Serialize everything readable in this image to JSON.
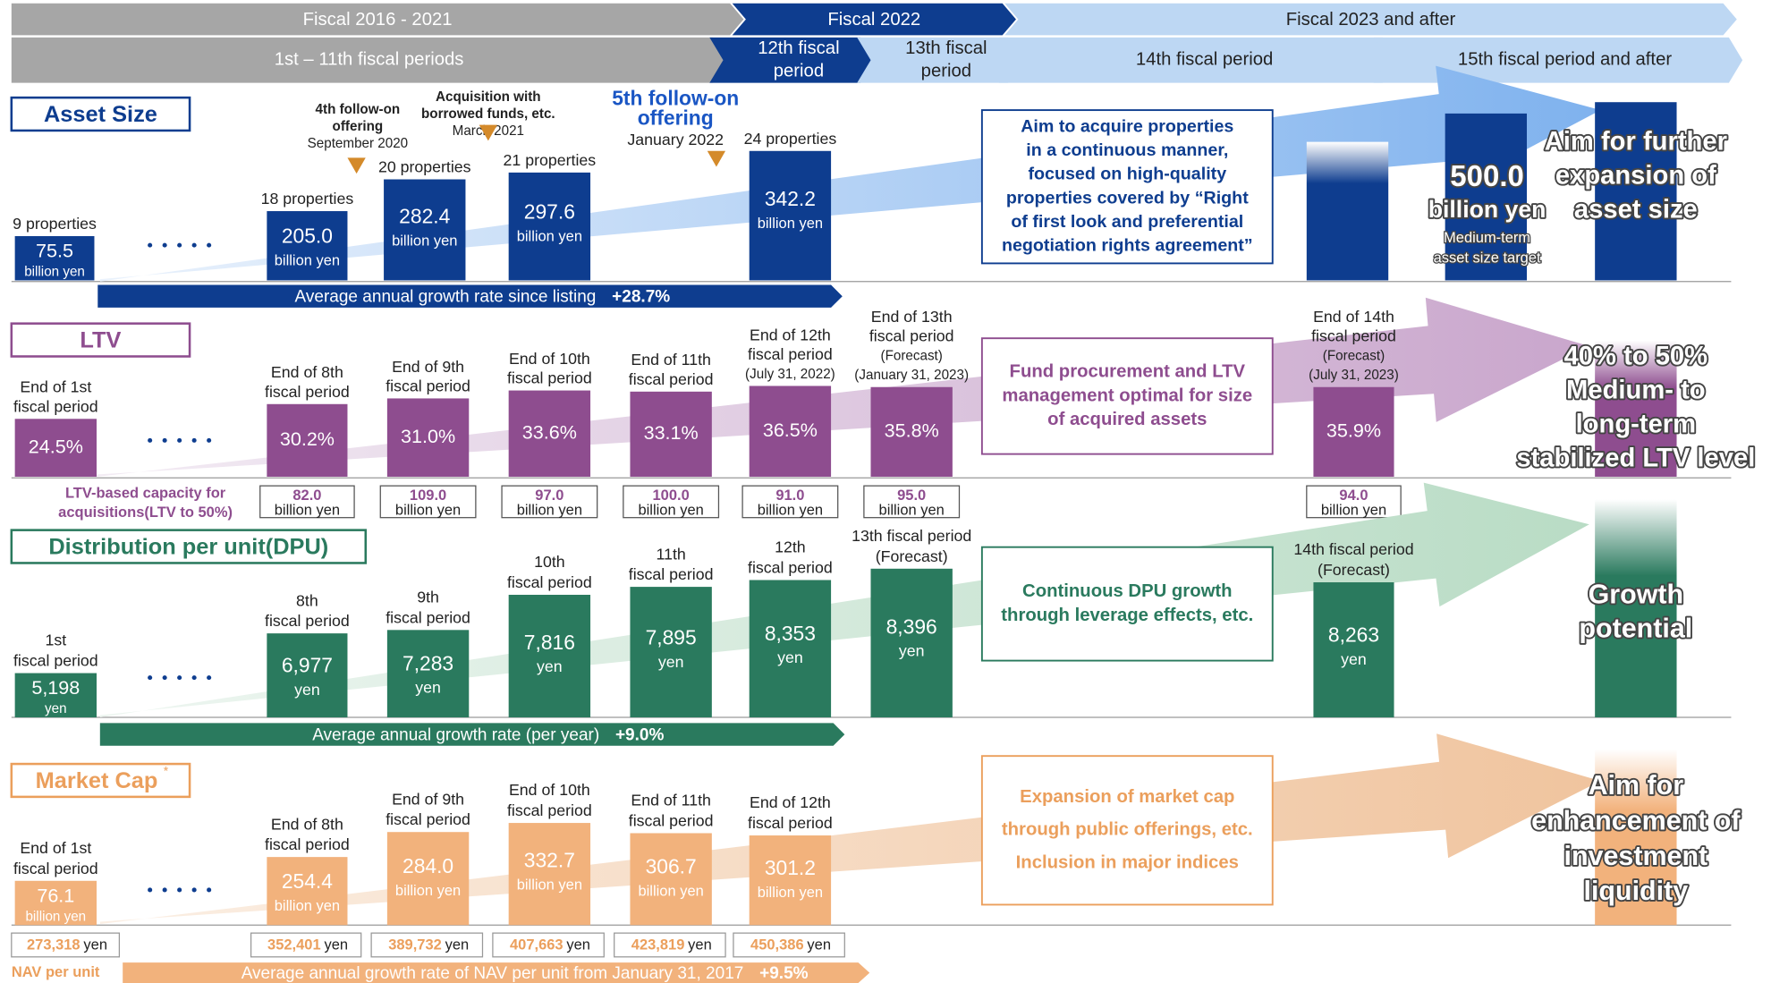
{
  "header": {
    "phases": [
      "Fiscal 2016 - 2021",
      "Fiscal 2022",
      "Fiscal 2023 and after"
    ],
    "periods": [
      [
        "1st – 11th fiscal periods"
      ],
      [
        "12th fiscal",
        "period"
      ],
      [
        "13th fiscal",
        "period"
      ],
      [
        "14th fiscal period"
      ],
      [
        "15th fiscal period and after"
      ]
    ]
  },
  "asset_size": {
    "title": "Asset Size",
    "bars": [
      {
        "label": [
          "9 properties"
        ],
        "value": "75.5",
        "unit": "billion yen"
      },
      {
        "label": [
          "18 properties"
        ],
        "value": "205.0",
        "unit": "billion yen"
      },
      {
        "label": [
          "20 properties"
        ],
        "value": "282.4",
        "unit": "billion yen"
      },
      {
        "label": [
          "21 properties"
        ],
        "value": "297.6",
        "unit": "billion yen"
      },
      {
        "label": [
          "24 properties"
        ],
        "value": "342.2",
        "unit": "billion yen"
      }
    ],
    "annotations": [
      {
        "lines": [
          "4th follow-on",
          "offering"
        ],
        "date": "September 2020"
      },
      {
        "lines": [
          "Acquisition with",
          "borrowed funds, etc."
        ],
        "date": "March 2021"
      },
      {
        "lines": [
          "5th follow-on",
          "offering"
        ],
        "date": "January 2022"
      }
    ],
    "message": [
      "Aim to acquire properties",
      "in a continuous manner,",
      "focused on high-quality",
      "properties covered by “Right",
      "of first look and preferential",
      "negotiation rights agreement”"
    ],
    "target": {
      "value": "500.0",
      "unit": "billion yen",
      "note": [
        "Medium-term",
        "asset size target"
      ]
    },
    "aim": [
      "Aim for further",
      "expansion of",
      "asset size"
    ],
    "growth": {
      "label": "Average annual growth rate since listing",
      "rate": "+28.7%"
    }
  },
  "ltv": {
    "title": "LTV",
    "bars": [
      {
        "label": [
          "End of 1st",
          "fiscal period"
        ],
        "value": "24.5%"
      },
      {
        "label": [
          "End of 8th",
          "fiscal period"
        ],
        "value": "30.2%"
      },
      {
        "label": [
          "End of 9th",
          "fiscal period"
        ],
        "value": "31.0%"
      },
      {
        "label": [
          "End of 10th",
          "fiscal period"
        ],
        "value": "33.6%"
      },
      {
        "label": [
          "End of 11th",
          "fiscal period"
        ],
        "value": "33.1%"
      },
      {
        "label": [
          "End of 12th",
          "fiscal period",
          "(July 31, 2022)"
        ],
        "value": "36.5%"
      },
      {
        "label": [
          "End of 13th",
          "fiscal period",
          "(Forecast)",
          "(January 31, 2023)"
        ],
        "value": "35.8%"
      },
      {
        "label": [
          "End of 14th",
          "fiscal period",
          "(Forecast)",
          "(July 31, 2023)"
        ],
        "value": "35.9%"
      }
    ],
    "message": [
      "Fund procurement and LTV",
      "management optimal for size",
      "of acquired assets"
    ],
    "aim": [
      "40% to  50%",
      "Medium- to",
      "long-term",
      "stabilized LTV level"
    ],
    "capacity_label": [
      "LTV-based capacity for",
      "acquisitions(LTV to 50%)"
    ],
    "capacity": [
      {
        "value": "82.0",
        "unit": "billion yen"
      },
      {
        "value": "109.0",
        "unit": "billion yen"
      },
      {
        "value": "97.0",
        "unit": "billion yen"
      },
      {
        "value": "100.0",
        "unit": "billion yen"
      },
      {
        "value": "91.0",
        "unit": "billion yen"
      },
      {
        "value": "95.0",
        "unit": "billion yen"
      },
      {
        "value": "94.0",
        "unit": "billion yen"
      }
    ]
  },
  "dpu": {
    "title": "Distribution per unit(DPU)",
    "bars": [
      {
        "label": [
          "1st",
          "fiscal period"
        ],
        "value": "5,198",
        "unit": "yen"
      },
      {
        "label": [
          "8th",
          "fiscal period"
        ],
        "value": "6,977",
        "unit": "yen"
      },
      {
        "label": [
          "9th",
          "fiscal period"
        ],
        "value": "7,283",
        "unit": "yen"
      },
      {
        "label": [
          "10th",
          "fiscal period"
        ],
        "value": "7,816",
        "unit": "yen"
      },
      {
        "label": [
          "11th",
          "fiscal period"
        ],
        "value": "7,895",
        "unit": "yen"
      },
      {
        "label": [
          "12th",
          "fiscal period"
        ],
        "value": "8,353",
        "unit": "yen"
      },
      {
        "label": [
          "13th fiscal period",
          "(Forecast)"
        ],
        "value": "8,396",
        "unit": "yen"
      },
      {
        "label": [
          "14th fiscal period",
          "(Forecast)"
        ],
        "value": "8,263",
        "unit": "yen"
      }
    ],
    "message": [
      "Continuous DPU growth",
      "through leverage effects, etc."
    ],
    "aim": [
      "Growth",
      "potential"
    ],
    "growth": {
      "label": "Average annual growth rate (per year)",
      "rate": "+9.0%"
    }
  },
  "market_cap": {
    "title": "Market Cap",
    "title_mark": "*",
    "bars": [
      {
        "label": [
          "End of 1st",
          "fiscal period"
        ],
        "value": "76.1",
        "unit": "billion yen"
      },
      {
        "label": [
          "End of 8th",
          "fiscal period"
        ],
        "value": "254.4",
        "unit": "billion yen"
      },
      {
        "label": [
          "End of 9th",
          "fiscal period"
        ],
        "value": "284.0",
        "unit": "billion yen"
      },
      {
        "label": [
          "End of 10th",
          "fiscal period"
        ],
        "value": "332.7",
        "unit": "billion yen"
      },
      {
        "label": [
          "End of 11th",
          "fiscal period"
        ],
        "value": "306.7",
        "unit": "billion yen"
      },
      {
        "label": [
          "End of 12th",
          "fiscal period"
        ],
        "value": "301.2",
        "unit": "billion yen"
      }
    ],
    "message": [
      "Expansion of market cap",
      "through public offerings, etc.",
      "Inclusion in major indices"
    ],
    "aim": [
      "Aim for",
      "enhancement of",
      "investment",
      "liquidity"
    ],
    "nav_label": "NAV per unit",
    "nav": [
      {
        "value": "273,318",
        "unit": "yen"
      },
      {
        "value": "352,401",
        "unit": "yen"
      },
      {
        "value": "389,732",
        "unit": "yen"
      },
      {
        "value": "407,663",
        "unit": "yen"
      },
      {
        "value": "423,819",
        "unit": "yen"
      },
      {
        "value": "450,386",
        "unit": "yen"
      }
    ],
    "growth": {
      "label": "Average annual growth rate of NAV per unit from January 31, 2017",
      "rate": "+9.5%"
    }
  }
}
